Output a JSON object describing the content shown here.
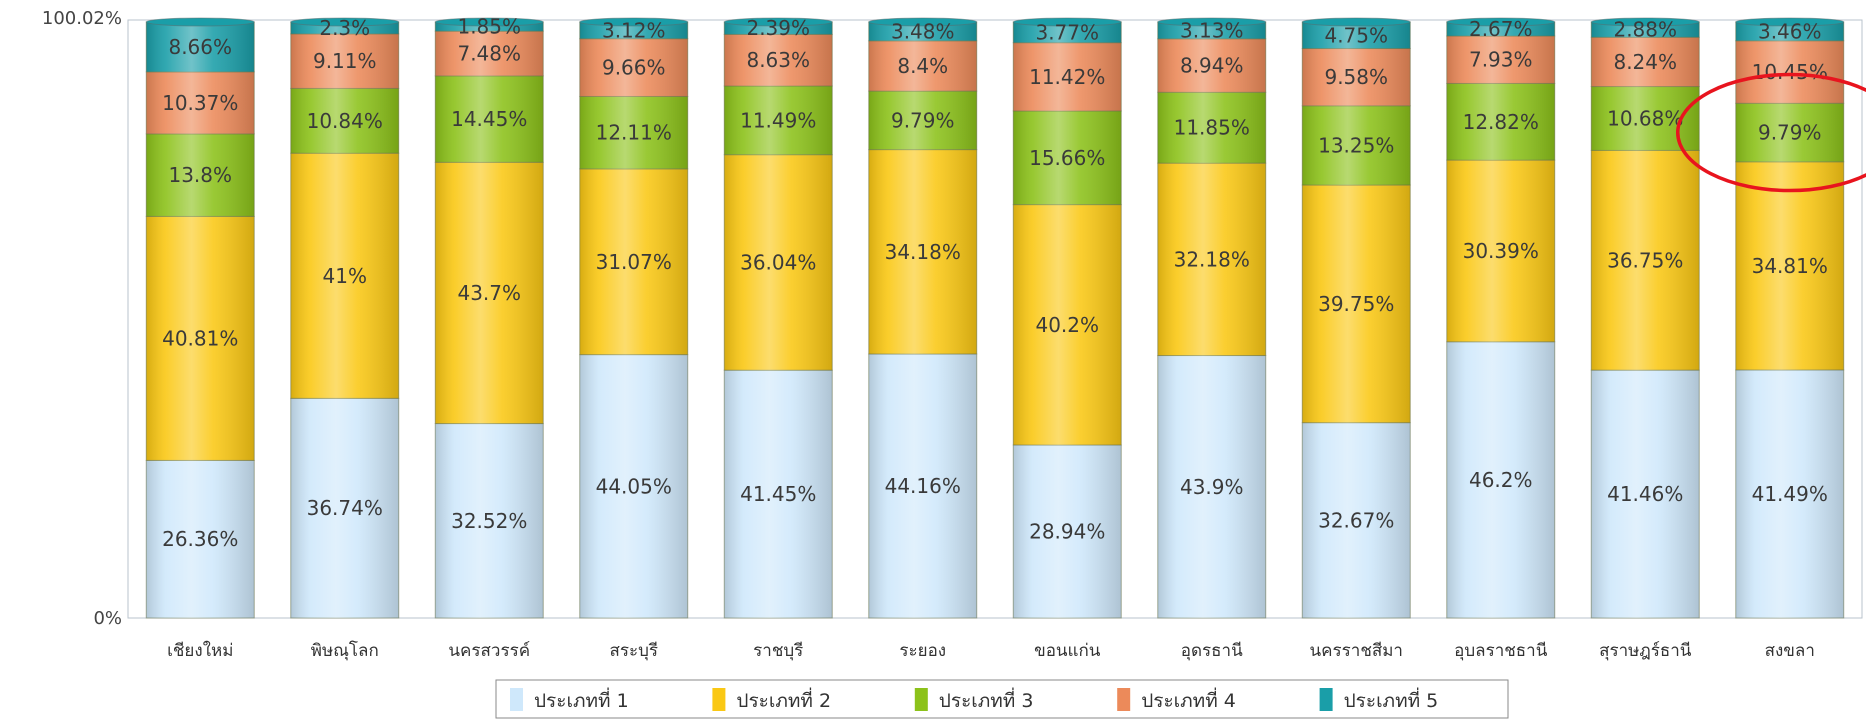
{
  "chart_data": {
    "type": "bar",
    "stacked": true,
    "normalized": true,
    "title": "",
    "xlabel": "",
    "ylabel": "",
    "ylim": [
      0,
      100.02
    ],
    "y_ticks": [
      "0%",
      "100.02%"
    ],
    "grid": false,
    "legend_position": "bottom",
    "categories": [
      "เชียงใหม่",
      "พิษณุโลก",
      "นครสวรรค์",
      "สระบุรี",
      "ราชบุรี",
      "ระยอง",
      "ขอนแก่น",
      "อุดรธานี",
      "นครราชสีมา",
      "อุบลราชธานี",
      "สุราษฎร์ธานี",
      "สงขลา"
    ],
    "series": [
      {
        "name": "ประเภทที่ 1",
        "color": "#cfe8fb",
        "values": [
          26.36,
          36.74,
          32.52,
          44.05,
          41.45,
          44.16,
          28.94,
          43.9,
          32.67,
          46.2,
          41.46,
          41.49
        ],
        "labels": [
          "26.36%",
          "36.74%",
          "32.52%",
          "44.05%",
          "41.45%",
          "44.16%",
          "28.94%",
          "43.9%",
          "32.67%",
          "46.2%",
          "41.46%",
          "41.49%"
        ]
      },
      {
        "name": "ประเภทที่ 2",
        "color": "#fac814",
        "values": [
          40.81,
          41,
          43.7,
          31.07,
          36.04,
          34.18,
          40.2,
          32.18,
          39.75,
          30.39,
          36.75,
          34.81
        ],
        "labels": [
          "40.81%",
          "41%",
          "43.7%",
          "31.07%",
          "36.04%",
          "34.18%",
          "40.2%",
          "32.18%",
          "39.75%",
          "30.39%",
          "36.75%",
          "34.81%"
        ]
      },
      {
        "name": "ประเภทที่ 3",
        "color": "#8cc21a",
        "values": [
          13.8,
          10.84,
          14.45,
          12.11,
          11.49,
          9.79,
          15.66,
          11.85,
          13.25,
          12.82,
          10.68,
          9.79
        ],
        "labels": [
          "13.8%",
          "10.84%",
          "14.45%",
          "12.11%",
          "11.49%",
          "9.79%",
          "15.66%",
          "11.85%",
          "13.25%",
          "12.82%",
          "10.68%",
          "9.79%"
        ]
      },
      {
        "name": "ประเภทที่ 4",
        "color": "#ec8a5a",
        "values": [
          10.37,
          9.11,
          7.48,
          9.66,
          8.63,
          8.4,
          11.42,
          8.94,
          9.58,
          7.93,
          8.24,
          10.45
        ],
        "labels": [
          "10.37%",
          "9.11%",
          "7.48%",
          "9.66%",
          "8.63%",
          "8.4%",
          "11.42%",
          "8.94%",
          "9.58%",
          "7.93%",
          "8.24%",
          "10.45%"
        ]
      },
      {
        "name": "ประเภทที่ 5",
        "color": "#1a9ea8",
        "values": [
          8.66,
          2.3,
          1.85,
          3.12,
          2.39,
          3.48,
          3.77,
          3.13,
          4.75,
          2.67,
          2.88,
          3.46
        ],
        "labels": [
          "8.66%",
          "2.3%",
          "1.85%",
          "3.12%",
          "2.39%",
          "3.48%",
          "3.77%",
          "3.13%",
          "4.75%",
          "2.67%",
          "2.88%",
          "3.46%"
        ]
      }
    ],
    "annotation": {
      "type": "ellipse",
      "color": "#e8141e",
      "category": "สงขลา",
      "series": "ประเภทที่ 3"
    }
  }
}
